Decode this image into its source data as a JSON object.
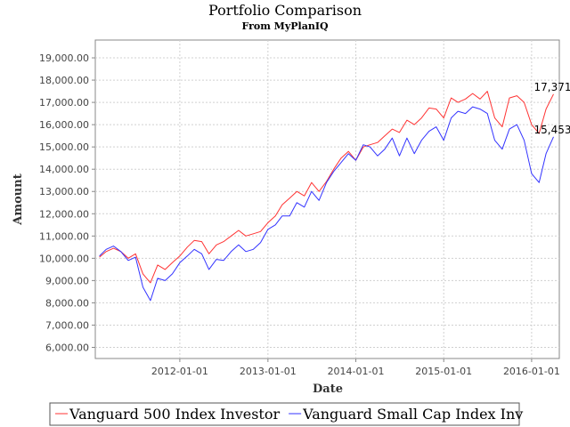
{
  "chart_data": {
    "type": "line",
    "title": "Portfolio Comparison",
    "subtitle": "From MyPlanIQ",
    "xlabel": "Date",
    "ylabel": "Amount",
    "x_ticks": [
      "2012-01-01",
      "2013-01-01",
      "2014-01-01",
      "2015-01-01",
      "2016-01-01"
    ],
    "y_ticks": [
      "6,000.00",
      "7,000.00",
      "8,000.00",
      "9,000.00",
      "10,000.00",
      "11,000.00",
      "12,000.00",
      "13,000.00",
      "14,000.00",
      "15,000.00",
      "16,000.00",
      "17,000.00",
      "18,000.00",
      "19,000.00"
    ],
    "xlim": [
      "2011-01-15",
      "2016-04-25"
    ],
    "ylim": [
      5500,
      19800
    ],
    "grid": true,
    "legend_position": "bottom",
    "series": [
      {
        "name": "Vanguard 500 Index Investor",
        "color": "#ff3333",
        "end_label": "17,371",
        "points": [
          [
            "2011-02-01",
            10050
          ],
          [
            "2011-03-01",
            10300
          ],
          [
            "2011-04-01",
            10450
          ],
          [
            "2011-05-01",
            10300
          ],
          [
            "2011-06-01",
            10000
          ],
          [
            "2011-07-01",
            10200
          ],
          [
            "2011-08-01",
            9300
          ],
          [
            "2011-09-01",
            8900
          ],
          [
            "2011-10-01",
            9700
          ],
          [
            "2011-11-01",
            9500
          ],
          [
            "2011-12-01",
            9800
          ],
          [
            "2012-01-01",
            10100
          ],
          [
            "2012-02-01",
            10500
          ],
          [
            "2012-03-01",
            10800
          ],
          [
            "2012-04-01",
            10750
          ],
          [
            "2012-05-01",
            10200
          ],
          [
            "2012-06-01",
            10600
          ],
          [
            "2012-07-01",
            10750
          ],
          [
            "2012-08-01",
            11000
          ],
          [
            "2012-09-01",
            11250
          ],
          [
            "2012-10-01",
            11000
          ],
          [
            "2012-11-01",
            11100
          ],
          [
            "2012-12-01",
            11200
          ],
          [
            "2013-01-01",
            11600
          ],
          [
            "2013-02-01",
            11900
          ],
          [
            "2013-03-01",
            12400
          ],
          [
            "2013-04-01",
            12700
          ],
          [
            "2013-05-01",
            13000
          ],
          [
            "2013-06-01",
            12800
          ],
          [
            "2013-07-01",
            13400
          ],
          [
            "2013-08-01",
            13000
          ],
          [
            "2013-09-01",
            13450
          ],
          [
            "2013-10-01",
            14000
          ],
          [
            "2013-11-01",
            14500
          ],
          [
            "2013-12-01",
            14800
          ],
          [
            "2014-01-01",
            14400
          ],
          [
            "2014-02-01",
            15000
          ],
          [
            "2014-03-01",
            15100
          ],
          [
            "2014-04-01",
            15200
          ],
          [
            "2014-05-01",
            15500
          ],
          [
            "2014-06-01",
            15800
          ],
          [
            "2014-07-01",
            15650
          ],
          [
            "2014-08-01",
            16200
          ],
          [
            "2014-09-01",
            16000
          ],
          [
            "2014-10-01",
            16300
          ],
          [
            "2014-11-01",
            16750
          ],
          [
            "2014-12-01",
            16700
          ],
          [
            "2015-01-01",
            16300
          ],
          [
            "2015-02-01",
            17200
          ],
          [
            "2015-03-01",
            17000
          ],
          [
            "2015-04-01",
            17150
          ],
          [
            "2015-05-01",
            17400
          ],
          [
            "2015-06-01",
            17150
          ],
          [
            "2015-07-01",
            17500
          ],
          [
            "2015-08-01",
            16300
          ],
          [
            "2015-09-01",
            15900
          ],
          [
            "2015-10-01",
            17200
          ],
          [
            "2015-11-01",
            17300
          ],
          [
            "2015-12-01",
            17000
          ],
          [
            "2016-01-01",
            16000
          ],
          [
            "2016-02-01",
            15600
          ],
          [
            "2016-03-01",
            16700
          ],
          [
            "2016-04-01",
            17371
          ]
        ]
      },
      {
        "name": "Vanguard Small Cap Index Inv",
        "color": "#3333ff",
        "end_label": "15,453",
        "points": [
          [
            "2011-02-01",
            10100
          ],
          [
            "2011-03-01",
            10400
          ],
          [
            "2011-04-01",
            10550
          ],
          [
            "2011-05-01",
            10300
          ],
          [
            "2011-06-01",
            9900
          ],
          [
            "2011-07-01",
            10050
          ],
          [
            "2011-08-01",
            8700
          ],
          [
            "2011-09-01",
            8100
          ],
          [
            "2011-10-01",
            9100
          ],
          [
            "2011-11-01",
            9000
          ],
          [
            "2011-12-01",
            9300
          ],
          [
            "2012-01-01",
            9800
          ],
          [
            "2012-02-01",
            10100
          ],
          [
            "2012-03-01",
            10400
          ],
          [
            "2012-04-01",
            10200
          ],
          [
            "2012-05-01",
            9500
          ],
          [
            "2012-06-01",
            9950
          ],
          [
            "2012-07-01",
            9900
          ],
          [
            "2012-08-01",
            10300
          ],
          [
            "2012-09-01",
            10600
          ],
          [
            "2012-10-01",
            10300
          ],
          [
            "2012-11-01",
            10400
          ],
          [
            "2012-12-01",
            10700
          ],
          [
            "2013-01-01",
            11300
          ],
          [
            "2013-02-01",
            11500
          ],
          [
            "2013-03-01",
            11900
          ],
          [
            "2013-04-01",
            11900
          ],
          [
            "2013-05-01",
            12500
          ],
          [
            "2013-06-01",
            12300
          ],
          [
            "2013-07-01",
            13000
          ],
          [
            "2013-08-01",
            12600
          ],
          [
            "2013-09-01",
            13400
          ],
          [
            "2013-10-01",
            13900
          ],
          [
            "2013-11-01",
            14300
          ],
          [
            "2013-12-01",
            14700
          ],
          [
            "2014-01-01",
            14400
          ],
          [
            "2014-02-01",
            15100
          ],
          [
            "2014-03-01",
            15000
          ],
          [
            "2014-04-01",
            14600
          ],
          [
            "2014-05-01",
            14900
          ],
          [
            "2014-06-01",
            15400
          ],
          [
            "2014-07-01",
            14600
          ],
          [
            "2014-08-01",
            15400
          ],
          [
            "2014-09-01",
            14700
          ],
          [
            "2014-10-01",
            15300
          ],
          [
            "2014-11-01",
            15700
          ],
          [
            "2014-12-01",
            15900
          ],
          [
            "2015-01-01",
            15300
          ],
          [
            "2015-02-01",
            16300
          ],
          [
            "2015-03-01",
            16600
          ],
          [
            "2015-04-01",
            16500
          ],
          [
            "2015-05-01",
            16800
          ],
          [
            "2015-06-01",
            16700
          ],
          [
            "2015-07-01",
            16500
          ],
          [
            "2015-08-01",
            15300
          ],
          [
            "2015-09-01",
            14900
          ],
          [
            "2015-10-01",
            15800
          ],
          [
            "2015-11-01",
            16000
          ],
          [
            "2015-12-01",
            15300
          ],
          [
            "2016-01-01",
            13800
          ],
          [
            "2016-02-01",
            13400
          ],
          [
            "2016-03-01",
            14700
          ],
          [
            "2016-04-01",
            15453
          ]
        ]
      }
    ]
  }
}
